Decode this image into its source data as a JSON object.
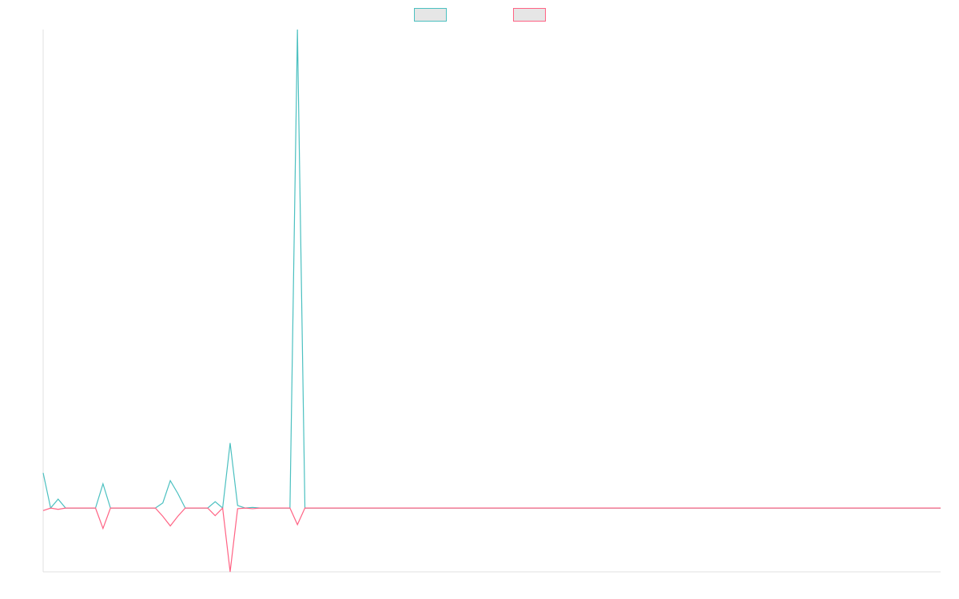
{
  "chart_data": {
    "type": "line",
    "title": "",
    "xlabel": "",
    "ylabel": "",
    "grid": false,
    "legend_position": "top-center",
    "x": [
      0,
      1,
      2,
      3,
      4,
      5,
      6,
      7,
      8,
      9,
      10,
      11,
      12,
      13,
      14,
      15,
      16,
      17,
      18,
      19,
      20,
      21,
      22,
      23,
      24,
      25,
      26,
      27,
      28,
      29,
      30,
      31,
      32,
      33,
      34,
      35,
      36,
      37,
      38,
      39,
      40,
      41,
      42,
      43,
      44,
      45,
      46,
      47,
      48,
      49,
      50,
      51,
      52,
      53,
      54,
      55,
      56,
      57,
      58,
      59,
      60,
      61,
      62,
      63,
      64,
      65,
      66,
      67,
      68,
      69,
      70,
      71,
      72,
      73,
      74,
      75,
      76,
      77,
      78,
      79,
      80,
      81,
      82,
      83,
      84,
      85,
      86,
      87,
      88,
      89,
      90,
      91,
      92,
      93,
      94,
      95,
      96,
      97,
      98,
      99,
      100,
      101,
      102,
      103,
      104,
      105,
      106,
      107,
      108,
      109,
      110,
      111,
      112,
      113,
      114,
      115,
      116,
      117,
      118,
      119,
      120
    ],
    "ylim": [
      -0.1,
      0.75
    ],
    "series": [
      {
        "name": "",
        "color": "#4bc0c0",
        "values": [
          0.055,
          0.0,
          0.014,
          0.0,
          0.0,
          0.0,
          0.0,
          0.0,
          0.038,
          0.0,
          0.0,
          0.0,
          0.0,
          0.0,
          0.0,
          0.0,
          0.008,
          0.043,
          0.023,
          0.0,
          0.0,
          0.0,
          0.0,
          0.01,
          0.0,
          0.102,
          0.004,
          0.0,
          0.001,
          0.0,
          0.0,
          0.0,
          0.0,
          0.0,
          0.75,
          0.0,
          0.0,
          0.0,
          0.0,
          0.0,
          0.0,
          0.0,
          0.0,
          0.0,
          0.0,
          0.0,
          0.0,
          0.0,
          0.0,
          0.0,
          0.0,
          0.0,
          0.0,
          0.0,
          0.0,
          0.0,
          0.0,
          0.0,
          0.0,
          0.0,
          0.0,
          0.0,
          0.0,
          0.0,
          0.0,
          0.0,
          0.0,
          0.0,
          0.0,
          0.0,
          0.0,
          0.0,
          0.0,
          0.0,
          0.0,
          0.0,
          0.0,
          0.0,
          0.0,
          0.0,
          0.0,
          0.0,
          0.0,
          0.0,
          0.0,
          0.0,
          0.0,
          0.0,
          0.0,
          0.0,
          0.0,
          0.0,
          0.0,
          0.0,
          0.0,
          0.0,
          0.0,
          0.0,
          0.0,
          0.0,
          0.0,
          0.0,
          0.0,
          0.0,
          0.0,
          0.0,
          0.0,
          0.0,
          0.0,
          0.0,
          0.0,
          0.0,
          0.0,
          0.0,
          0.0,
          0.0,
          0.0,
          0.0,
          0.0,
          0.0,
          0.0
        ]
      },
      {
        "name": "",
        "color": "#ff6384",
        "values": [
          -0.004,
          0.0,
          -0.002,
          0.0,
          0.0,
          0.0,
          0.0,
          0.0,
          -0.032,
          0.0,
          0.0,
          0.0,
          0.0,
          0.0,
          0.0,
          0.0,
          -0.013,
          -0.028,
          -0.013,
          0.0,
          0.0,
          0.0,
          0.0,
          -0.012,
          0.0,
          -0.1,
          -0.001,
          0.0,
          -0.001,
          0.0,
          0.0,
          0.0,
          0.0,
          0.0,
          -0.026,
          0.0,
          0.0,
          0.0,
          0.0,
          0.0,
          0.0,
          0.0,
          0.0,
          0.0,
          0.0,
          0.0,
          0.0,
          0.0,
          0.0,
          0.0,
          0.0,
          0.0,
          0.0,
          0.0,
          0.0,
          0.0,
          0.0,
          0.0,
          0.0,
          0.0,
          0.0,
          0.0,
          0.0,
          0.0,
          0.0,
          0.0,
          0.0,
          0.0,
          0.0,
          0.0,
          0.0,
          0.0,
          0.0,
          0.0,
          0.0,
          0.0,
          0.0,
          0.0,
          0.0,
          0.0,
          0.0,
          0.0,
          0.0,
          0.0,
          0.0,
          0.0,
          0.0,
          0.0,
          0.0,
          0.0,
          0.0,
          0.0,
          0.0,
          0.0,
          0.0,
          0.0,
          0.0,
          0.0,
          0.0,
          0.0,
          0.0,
          0.0,
          0.0,
          0.0,
          0.0,
          0.0,
          0.0,
          0.0,
          0.0,
          0.0,
          0.0,
          0.0,
          0.0,
          0.0,
          0.0,
          0.0,
          0.0,
          0.0,
          0.0,
          0.0,
          0.0
        ]
      }
    ]
  }
}
